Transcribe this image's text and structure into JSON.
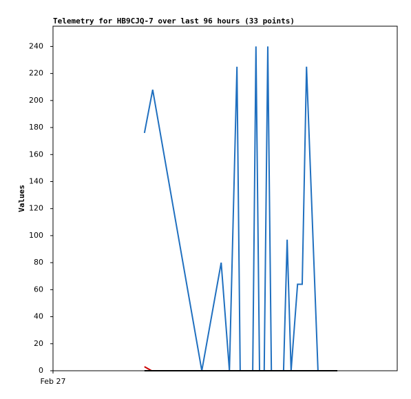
{
  "chart_data": {
    "type": "line",
    "title": "Telemetry for HB9CJQ-7 over last 96 hours (33 points)",
    "y_label": "Values",
    "xlim": [
      0,
      96
    ],
    "xticks": [
      {
        "value": 0,
        "label": "Feb 27"
      }
    ],
    "ylim": [
      0,
      255
    ],
    "yticks": [
      0,
      20,
      40,
      60,
      80,
      100,
      120,
      140,
      160,
      180,
      200,
      220,
      240
    ],
    "series": [
      {
        "color": "#1f6fbf",
        "x": [
          25.5,
          27.8,
          41.5,
          46.9,
          49.2,
          51.3,
          52.2,
          55.7,
          56.6,
          57.6,
          58.9,
          59.9,
          60.9,
          64.3,
          65.3,
          66.4,
          68.2,
          69.5,
          70.7,
          73.9,
          79.3
        ],
        "values": [
          176,
          208,
          0,
          80,
          0,
          225,
          0,
          0,
          240,
          0,
          0,
          240,
          0,
          0,
          97,
          0,
          64,
          64,
          225,
          0,
          0
        ]
      },
      {
        "color": "#cc0000",
        "x": [
          25.5,
          27.5
        ],
        "values": [
          3,
          0
        ]
      },
      {
        "color": "#000000",
        "x": [
          25.5,
          79.3
        ],
        "values": [
          0,
          0
        ]
      }
    ]
  }
}
